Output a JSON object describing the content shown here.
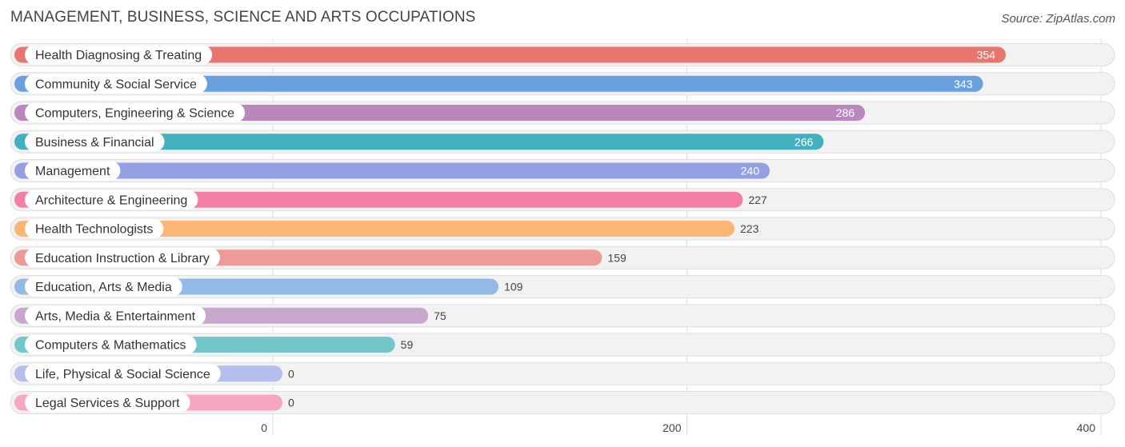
{
  "title": "MANAGEMENT, BUSINESS, SCIENCE AND ARTS OCCUPATIONS",
  "source": "Source: ZipAtlas.com",
  "chart_data": {
    "type": "bar",
    "orientation": "horizontal",
    "title": "MANAGEMENT, BUSINESS, SCIENCE AND ARTS OCCUPATIONS",
    "categories": [
      "Health Diagnosing & Treating",
      "Community & Social Service",
      "Computers, Engineering & Science",
      "Business & Financial",
      "Management",
      "Architecture & Engineering",
      "Health Technologists",
      "Education Instruction & Library",
      "Education, Arts & Media",
      "Arts, Media & Entertainment",
      "Computers & Mathematics",
      "Life, Physical & Social Science",
      "Legal Services & Support"
    ],
    "values": [
      354,
      343,
      286,
      266,
      240,
      227,
      223,
      159,
      109,
      75,
      59,
      0,
      0
    ],
    "colors": [
      "#e8766f",
      "#6aa0de",
      "#b987bd",
      "#42b0bf",
      "#95a0e3",
      "#f37fa5",
      "#fbb676",
      "#ec9b97",
      "#93b9e6",
      "#c7a7cb",
      "#72c7cd",
      "#b5bfee",
      "#f7a7c2"
    ],
    "xticks": [
      0,
      200,
      400
    ],
    "xlim": [
      0,
      400
    ],
    "grid": true,
    "legend": "none"
  }
}
